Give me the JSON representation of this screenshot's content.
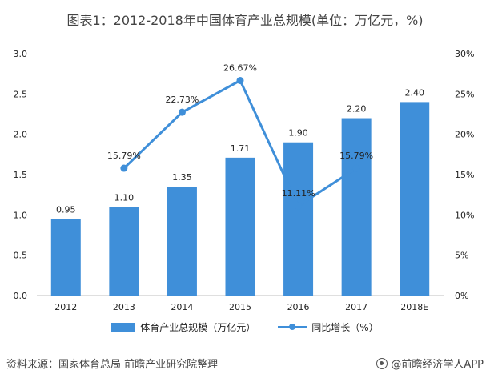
{
  "title": "图表1：2012-2018年中国体育产业总规模(单位：万亿元，%)",
  "chart_data": {
    "type": "bar",
    "categories": [
      "2012",
      "2013",
      "2014",
      "2015",
      "2016",
      "2017",
      "2018E"
    ],
    "series": [
      {
        "name": "体育产业总规模（万亿元）",
        "type": "bar",
        "axis": "left",
        "values": [
          0.95,
          1.1,
          1.35,
          1.71,
          1.9,
          2.2,
          2.4
        ],
        "labels": [
          "0.95",
          "1.10",
          "1.35",
          "1.71",
          "1.90",
          "2.20",
          "2.40"
        ],
        "color": "#3f8fd9"
      },
      {
        "name": "同比增长（%）",
        "type": "line",
        "axis": "right",
        "values": [
          null,
          15.79,
          22.73,
          26.67,
          11.11,
          15.79,
          null
        ],
        "labels": [
          "",
          "15.79%",
          "22.73%",
          "26.67%",
          "11.11%",
          "15.79%",
          ""
        ],
        "color": "#3f8fd9"
      }
    ],
    "y_left": {
      "lim": [
        0,
        3.0
      ],
      "ticks": [
        0,
        0.5,
        1.0,
        1.5,
        2.0,
        2.5,
        3.0
      ],
      "tick_labels": [
        "0.0",
        "0.5",
        "1.0",
        "1.5",
        "2.0",
        "2.5",
        "3.0"
      ]
    },
    "y_right": {
      "lim": [
        0,
        30
      ],
      "ticks": [
        0,
        5,
        10,
        15,
        20,
        25,
        30
      ],
      "tick_labels": [
        "0%",
        "5%",
        "10%",
        "15%",
        "20%",
        "25%",
        "30%"
      ]
    },
    "grid": false,
    "legend_position": "bottom"
  },
  "legend": {
    "bar_label": "体育产业总规模（万亿元）",
    "line_label": "同比增长（%）"
  },
  "footer": {
    "source": "资料来源：国家体育总局 前瞻产业研究院整理",
    "brand": "@前瞻经济学人APP"
  }
}
